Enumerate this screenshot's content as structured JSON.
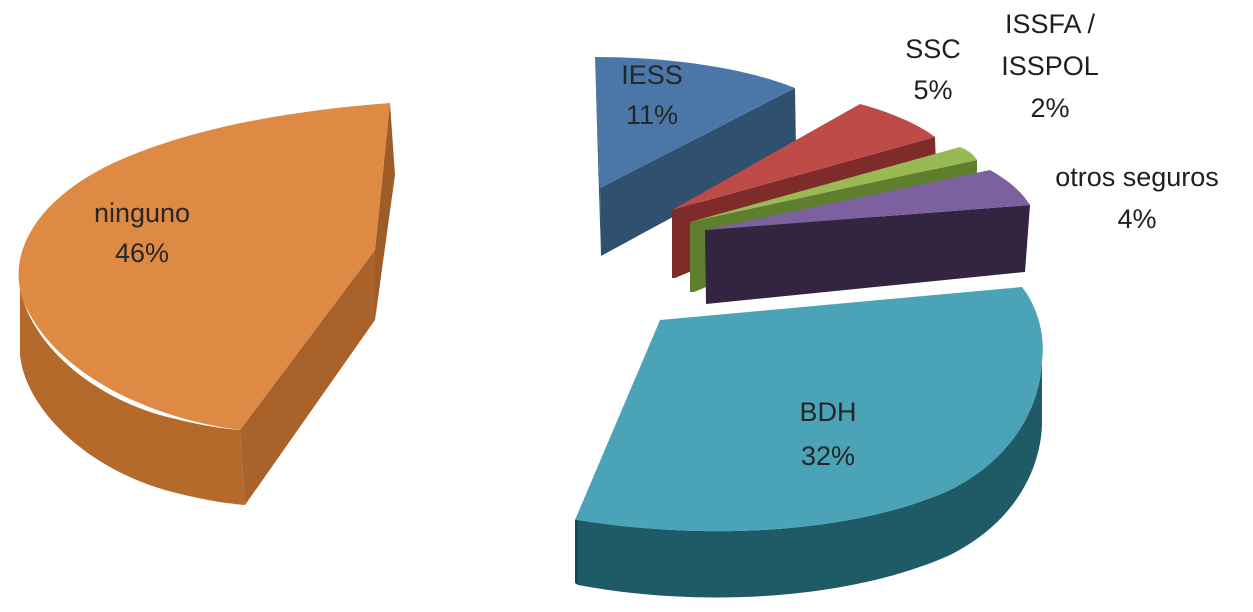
{
  "chart_data": {
    "type": "pie",
    "style": "3d-exploded",
    "slices": [
      {
        "label": "ninguno",
        "value": 46,
        "pct_label": "46%",
        "color": "#DE8A45"
      },
      {
        "label": "IESS",
        "value": 11,
        "pct_label": "11%",
        "color": "#4A77A8"
      },
      {
        "label": "SSC",
        "value": 5,
        "pct_label": "5%",
        "color": "#BE4B48"
      },
      {
        "label_lines": [
          "ISSFA /",
          "ISSPOL"
        ],
        "value": 2,
        "pct_label": "2%",
        "color": "#98B954"
      },
      {
        "label": "otros seguros",
        "value": 4,
        "pct_label": "4%",
        "color": "#7D60A0"
      },
      {
        "label": "BDH",
        "value": 32,
        "pct_label": "32%",
        "color": "#4BA3B8"
      }
    ]
  }
}
